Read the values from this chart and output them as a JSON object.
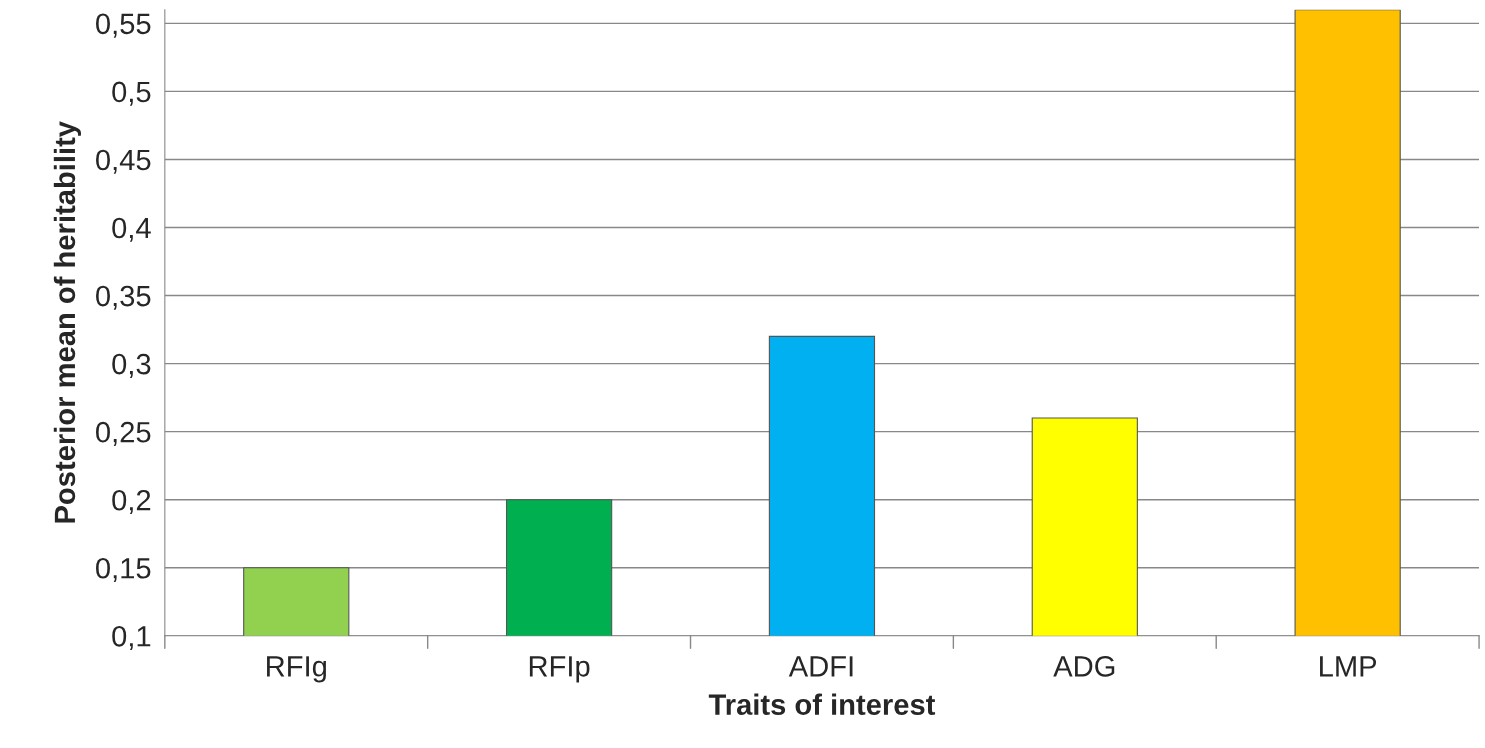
{
  "chart_data": {
    "type": "bar",
    "xlabel": "Traits of interest",
    "ylabel": "Posterior mean of heritability",
    "categories": [
      "RFIg",
      "RFIp",
      "ADFI",
      "ADG",
      "LMP"
    ],
    "values": [
      0.15,
      0.2,
      0.32,
      0.26,
      0.56
    ],
    "colors": [
      "#92d050",
      "#00b050",
      "#00b0f0",
      "#ffff00",
      "#ffc000"
    ],
    "ylim": [
      0.1,
      0.56
    ],
    "yticks": [
      {
        "value": 0.1,
        "label": "0,1"
      },
      {
        "value": 0.15,
        "label": "0,15"
      },
      {
        "value": 0.2,
        "label": "0,2"
      },
      {
        "value": 0.25,
        "label": "0,25"
      },
      {
        "value": 0.3,
        "label": "0,3"
      },
      {
        "value": 0.35,
        "label": "0,35"
      },
      {
        "value": 0.4,
        "label": "0,4"
      },
      {
        "value": 0.45,
        "label": "0,45"
      },
      {
        "value": 0.5,
        "label": "0,5"
      },
      {
        "value": 0.55,
        "label": "0,55"
      }
    ],
    "grid": "y"
  }
}
